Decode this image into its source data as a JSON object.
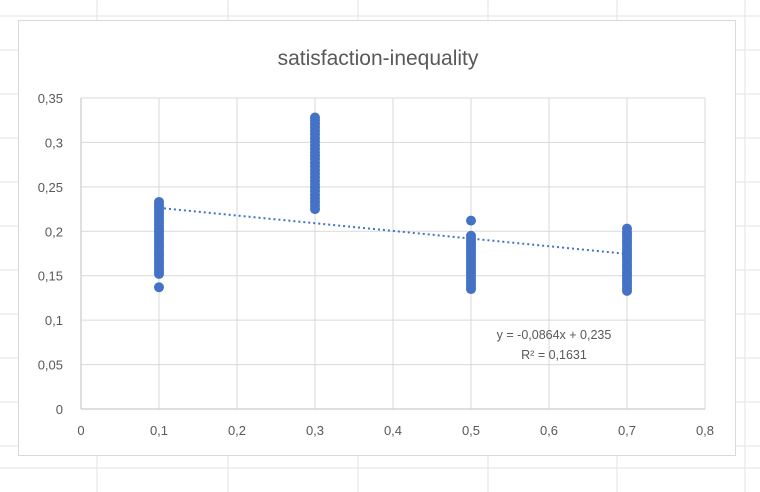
{
  "chart_data": {
    "type": "scatter",
    "title": "satisfaction-inequality",
    "xlabel": "",
    "ylabel": "",
    "xlim": [
      0,
      0.8
    ],
    "ylim": [
      0,
      0.35
    ],
    "x_ticks": [
      "0",
      "0,1",
      "0,2",
      "0,3",
      "0,4",
      "0,5",
      "0,6",
      "0,7",
      "0,8"
    ],
    "y_ticks": [
      "0",
      "0,05",
      "0,1",
      "0,15",
      "0,2",
      "0,25",
      "0,3",
      "0,35"
    ],
    "grid": true,
    "legend": "none",
    "color": "#4472c4",
    "series": [
      {
        "points": [
          [
            0.1,
            0.137
          ],
          [
            0.1,
            0.152
          ],
          [
            0.1,
            0.155
          ],
          [
            0.1,
            0.158
          ],
          [
            0.1,
            0.161
          ],
          [
            0.1,
            0.164
          ],
          [
            0.1,
            0.167
          ],
          [
            0.1,
            0.17
          ],
          [
            0.1,
            0.173
          ],
          [
            0.1,
            0.176
          ],
          [
            0.1,
            0.179
          ],
          [
            0.1,
            0.182
          ],
          [
            0.1,
            0.185
          ],
          [
            0.1,
            0.188
          ],
          [
            0.1,
            0.191
          ],
          [
            0.1,
            0.194
          ],
          [
            0.1,
            0.197
          ],
          [
            0.1,
            0.2
          ],
          [
            0.1,
            0.203
          ],
          [
            0.1,
            0.206
          ],
          [
            0.1,
            0.209
          ],
          [
            0.1,
            0.212
          ],
          [
            0.1,
            0.215
          ],
          [
            0.1,
            0.218
          ],
          [
            0.1,
            0.221
          ],
          [
            0.1,
            0.224
          ],
          [
            0.1,
            0.227
          ],
          [
            0.1,
            0.23
          ],
          [
            0.1,
            0.233
          ],
          [
            0.3,
            0.225
          ],
          [
            0.3,
            0.229
          ],
          [
            0.3,
            0.233
          ],
          [
            0.3,
            0.237
          ],
          [
            0.3,
            0.241
          ],
          [
            0.3,
            0.245
          ],
          [
            0.3,
            0.249
          ],
          [
            0.3,
            0.253
          ],
          [
            0.3,
            0.257
          ],
          [
            0.3,
            0.261
          ],
          [
            0.3,
            0.265
          ],
          [
            0.3,
            0.269
          ],
          [
            0.3,
            0.273
          ],
          [
            0.3,
            0.277
          ],
          [
            0.3,
            0.281
          ],
          [
            0.3,
            0.285
          ],
          [
            0.3,
            0.289
          ],
          [
            0.3,
            0.293
          ],
          [
            0.3,
            0.297
          ],
          [
            0.3,
            0.301
          ],
          [
            0.3,
            0.305
          ],
          [
            0.3,
            0.309
          ],
          [
            0.3,
            0.313
          ],
          [
            0.3,
            0.317
          ],
          [
            0.3,
            0.321
          ],
          [
            0.3,
            0.325
          ],
          [
            0.3,
            0.328
          ],
          [
            0.5,
            0.135
          ],
          [
            0.5,
            0.138
          ],
          [
            0.5,
            0.141
          ],
          [
            0.5,
            0.144
          ],
          [
            0.5,
            0.147
          ],
          [
            0.5,
            0.15
          ],
          [
            0.5,
            0.153
          ],
          [
            0.5,
            0.156
          ],
          [
            0.5,
            0.159
          ],
          [
            0.5,
            0.162
          ],
          [
            0.5,
            0.165
          ],
          [
            0.5,
            0.168
          ],
          [
            0.5,
            0.171
          ],
          [
            0.5,
            0.174
          ],
          [
            0.5,
            0.177
          ],
          [
            0.5,
            0.18
          ],
          [
            0.5,
            0.183
          ],
          [
            0.5,
            0.186
          ],
          [
            0.5,
            0.189
          ],
          [
            0.5,
            0.192
          ],
          [
            0.5,
            0.195
          ],
          [
            0.5,
            0.212
          ],
          [
            0.7,
            0.133
          ],
          [
            0.7,
            0.136
          ],
          [
            0.7,
            0.139
          ],
          [
            0.7,
            0.142
          ],
          [
            0.7,
            0.145
          ],
          [
            0.7,
            0.148
          ],
          [
            0.7,
            0.151
          ],
          [
            0.7,
            0.154
          ],
          [
            0.7,
            0.157
          ],
          [
            0.7,
            0.16
          ],
          [
            0.7,
            0.163
          ],
          [
            0.7,
            0.166
          ],
          [
            0.7,
            0.169
          ],
          [
            0.7,
            0.172
          ],
          [
            0.7,
            0.175
          ],
          [
            0.7,
            0.178
          ],
          [
            0.7,
            0.181
          ],
          [
            0.7,
            0.184
          ],
          [
            0.7,
            0.187
          ],
          [
            0.7,
            0.19
          ],
          [
            0.7,
            0.193
          ],
          [
            0.7,
            0.196
          ],
          [
            0.7,
            0.199
          ],
          [
            0.7,
            0.203
          ]
        ]
      }
    ],
    "trendline": {
      "type": "linear",
      "slope": -0.0864,
      "intercept": 0.235,
      "x_range": [
        0.1,
        0.7
      ],
      "color": "#4472c4",
      "style": "dotted",
      "equation_label": "y = -0,0864x + 0,235",
      "r2_label": "R² = 0,1631"
    }
  }
}
